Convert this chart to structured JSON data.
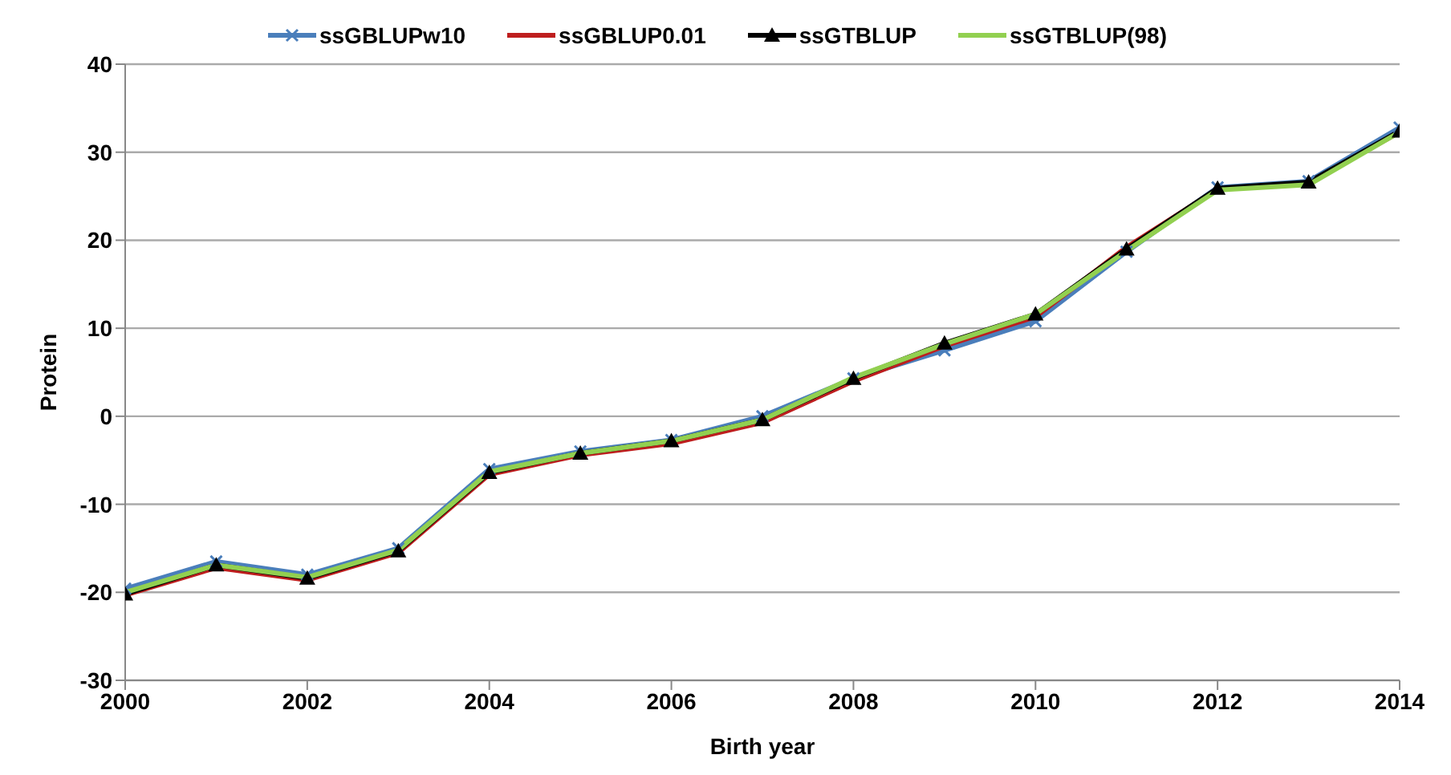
{
  "chart_data": {
    "type": "line",
    "xlabel": "Birth year",
    "ylabel": "Protein",
    "x": [
      2000,
      2001,
      2002,
      2003,
      2004,
      2005,
      2006,
      2007,
      2008,
      2009,
      2010,
      2011,
      2012,
      2013,
      2014
    ],
    "series": [
      {
        "name": "ssGBLUPw10",
        "color": "#4a7ebb",
        "marker": "cross",
        "values": [
          -19.6,
          -16.5,
          -18,
          -15,
          -6,
          -4,
          -2.7,
          0,
          4.3,
          7.5,
          10.8,
          18.7,
          26,
          26.7,
          32.8
        ]
      },
      {
        "name": "ssGBLUP0.01",
        "color": "#be1e1e",
        "marker": "none",
        "values": [
          -20.3,
          -17.2,
          -18.6,
          -15.5,
          -6.6,
          -4.4,
          -3.1,
          -0.7,
          4,
          8,
          11.3,
          19.2,
          25.8,
          26.5,
          32.3
        ]
      },
      {
        "name": "ssGTBLUP",
        "color": "#000000",
        "marker": "triangle",
        "values": [
          -20.2,
          -16.9,
          -18.4,
          -15.3,
          -6.4,
          -4.2,
          -2.8,
          -0.4,
          4.3,
          8.3,
          11.6,
          19,
          25.9,
          26.6,
          32.4
        ]
      },
      {
        "name": "ssGTBLUP(98)",
        "color": "#92d050",
        "marker": "none",
        "values": [
          -20,
          -16.9,
          -18.3,
          -15.2,
          -6.3,
          -4.2,
          -2.8,
          -0.4,
          4.4,
          8.2,
          11.6,
          18.8,
          25.7,
          26.3,
          32.3
        ]
      }
    ],
    "xlim": [
      2000,
      2014
    ],
    "xticks": [
      2000,
      2002,
      2004,
      2006,
      2008,
      2010,
      2012,
      2014
    ],
    "ylim": [
      -30,
      40
    ],
    "yticks": [
      -30,
      -20,
      -10,
      0,
      10,
      20,
      30,
      40
    ],
    "grid": "y",
    "legend": "top",
    "line_style": "solid"
  }
}
